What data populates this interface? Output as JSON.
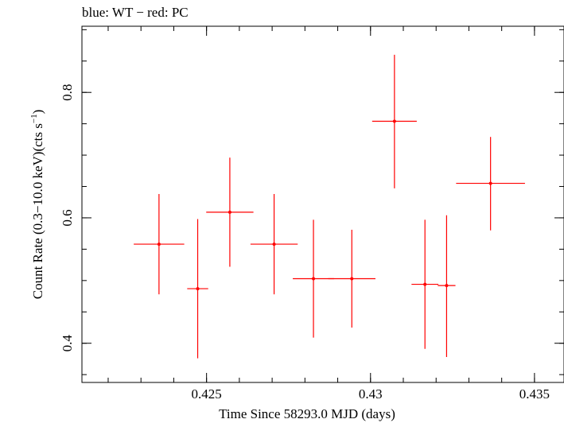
{
  "chart_data": {
    "type": "scatter",
    "title": "blue: WT − red: PC",
    "xlabel": "Time Since 58293.0 MJD (days)",
    "ylabel_main": "Count Rate (0.3−10.0 keV)(cts s",
    "ylabel_sup": "−1",
    "ylabel_close": ")",
    "xlim": [
      0.4212,
      0.4359
    ],
    "ylim": [
      0.3375,
      0.9055
    ],
    "x_ticks": [
      {
        "value": 0.425,
        "label": "0.425"
      },
      {
        "value": 0.43,
        "label": "0.43"
      },
      {
        "value": 0.435,
        "label": "0.435"
      }
    ],
    "x_minor_step": 0.001,
    "y_ticks": [
      {
        "value": 0.4,
        "label": "0.4"
      },
      {
        "value": 0.6,
        "label": "0.6"
      },
      {
        "value": 0.8,
        "label": "0.8"
      }
    ],
    "y_minor_step": 0.05,
    "grid": false,
    "series": [
      {
        "color": "#ff0000",
        "points": [
          {
            "x": 0.42355,
            "xerr": 0.00077,
            "y": 0.558,
            "ylo": 0.478,
            "yhi": 0.638
          },
          {
            "x": 0.42473,
            "xerr": 0.00032,
            "y": 0.487,
            "ylo": 0.376,
            "yhi": 0.598
          },
          {
            "x": 0.42571,
            "xerr": 0.00072,
            "y": 0.609,
            "ylo": 0.522,
            "yhi": 0.696
          },
          {
            "x": 0.42706,
            "xerr": 0.00072,
            "y": 0.558,
            "ylo": 0.478,
            "yhi": 0.638
          },
          {
            "x": 0.42826,
            "xerr": 0.00063,
            "y": 0.503,
            "ylo": 0.409,
            "yhi": 0.597
          },
          {
            "x": 0.42943,
            "xerr": 0.00072,
            "y": 0.503,
            "ylo": 0.425,
            "yhi": 0.581
          },
          {
            "x": 0.43073,
            "xerr": 0.00068,
            "y": 0.754,
            "ylo": 0.647,
            "yhi": 0.86
          },
          {
            "x": 0.43166,
            "xerr": 0.00041,
            "y": 0.494,
            "ylo": 0.391,
            "yhi": 0.597
          },
          {
            "x": 0.43232,
            "xerr": 0.00027,
            "y": 0.492,
            "ylo": 0.378,
            "yhi": 0.604
          },
          {
            "x": 0.43366,
            "xerr": 0.00105,
            "y": 0.655,
            "ylo": 0.58,
            "yhi": 0.729
          }
        ]
      }
    ]
  }
}
